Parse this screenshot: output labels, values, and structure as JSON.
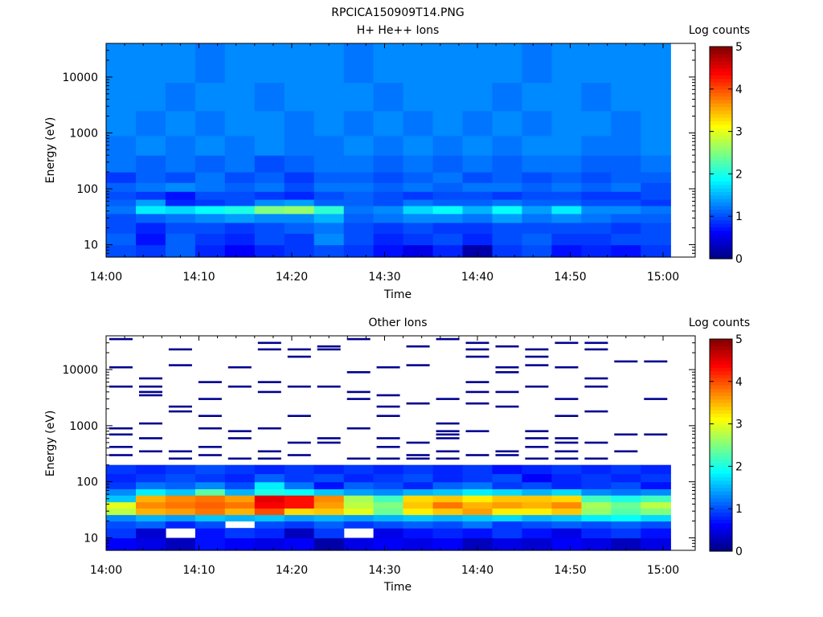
{
  "figure_title": "RPCICA150909T14.PNG",
  "colors": {
    "background": "#ffffff",
    "axis": "#000000",
    "colormap": "jet"
  },
  "chart_data": [
    {
      "type": "heatmap",
      "title": "H+ He++ Ions",
      "xlabel": "Time",
      "ylabel": "Energy (eV)",
      "x_tick_labels": [
        "14:00",
        "14:10",
        "14:20",
        "14:30",
        "14:40",
        "14:50",
        "15:00"
      ],
      "y_tick_labels": [
        "10",
        "100",
        "1000",
        "10000"
      ],
      "y_scale": "log",
      "ylim": [
        6,
        40000
      ],
      "time_bins_start": "14:00",
      "time_bin_minutes": 3.2,
      "colorbar": {
        "label": "Log counts",
        "ticks": [
          "0",
          "1",
          "2",
          "3",
          "4",
          "5"
        ],
        "range": [
          0,
          5
        ]
      },
      "energy_bands_eV": [
        {
          "lo": 6,
          "hi": 10,
          "values": [
            1.0,
            0.9,
            1.1,
            0.8,
            0.6,
            0.8,
            0.9,
            1.0,
            0.9,
            0.7,
            0.5,
            0.8,
            0.2,
            0.9,
            1.0,
            0.7,
            0.8,
            0.7,
            0.9
          ]
        },
        {
          "lo": 10,
          "hi": 16,
          "values": [
            1.1,
            0.7,
            1.1,
            0.9,
            0.8,
            1.0,
            0.9,
            1.3,
            1.0,
            0.8,
            0.9,
            1.0,
            0.8,
            1.0,
            1.1,
            0.9,
            0.9,
            1.0,
            1.0
          ]
        },
        {
          "lo": 16,
          "hi": 25,
          "values": [
            1.0,
            0.8,
            1.0,
            1.0,
            0.9,
            1.0,
            1.1,
            1.2,
            1.0,
            0.9,
            1.0,
            0.9,
            0.9,
            1.0,
            1.0,
            1.0,
            1.0,
            0.9,
            1.0
          ]
        },
        {
          "lo": 25,
          "hi": 36,
          "values": [
            1.0,
            1.1,
            1.2,
            1.3,
            1.4,
            1.3,
            1.3,
            1.5,
            1.1,
            1.2,
            1.3,
            1.3,
            1.2,
            1.4,
            1.2,
            1.3,
            1.2,
            1.1,
            1.1
          ]
        },
        {
          "lo": 36,
          "hi": 50,
          "values": [
            1.2,
            1.8,
            1.7,
            1.9,
            2.0,
            2.5,
            2.6,
            2.1,
            1.2,
            1.3,
            1.7,
            1.9,
            1.5,
            1.9,
            1.4,
            1.8,
            1.3,
            1.3,
            1.2
          ]
        },
        {
          "lo": 50,
          "hi": 65,
          "values": [
            1.1,
            1.4,
            0.8,
            0.9,
            1.0,
            1.3,
            1.4,
            1.1,
            1.1,
            1.0,
            1.2,
            1.1,
            1.1,
            1.2,
            1.1,
            1.1,
            1.0,
            1.0,
            0.9
          ]
        },
        {
          "lo": 65,
          "hi": 90,
          "values": [
            1.0,
            0.9,
            0.7,
            1.0,
            1.0,
            0.9,
            0.8,
            1.0,
            1.1,
            1.0,
            0.9,
            1.0,
            1.0,
            0.9,
            1.0,
            1.0,
            0.9,
            0.9,
            1.0
          ]
        },
        {
          "lo": 90,
          "hi": 130,
          "values": [
            1.1,
            1.2,
            1.3,
            1.2,
            1.1,
            1.2,
            1.0,
            1.2,
            1.2,
            1.1,
            1.2,
            1.1,
            1.2,
            1.2,
            1.1,
            1.2,
            1.1,
            1.2,
            1.0
          ]
        },
        {
          "lo": 130,
          "hi": 200,
          "values": [
            0.9,
            1.1,
            1.0,
            1.2,
            1.0,
            1.1,
            0.9,
            1.1,
            1.1,
            1.0,
            1.1,
            1.2,
            1.0,
            1.1,
            1.0,
            1.1,
            1.0,
            1.1,
            1.1
          ]
        },
        {
          "lo": 200,
          "hi": 400,
          "values": [
            1.2,
            1.1,
            1.2,
            1.1,
            1.2,
            1.0,
            1.1,
            1.2,
            1.2,
            1.1,
            1.2,
            1.1,
            1.2,
            1.1,
            1.2,
            1.2,
            1.1,
            1.1,
            1.2
          ]
        },
        {
          "lo": 400,
          "hi": 900,
          "values": [
            1.2,
            1.3,
            1.2,
            1.3,
            1.2,
            1.3,
            1.2,
            1.2,
            1.3,
            1.2,
            1.3,
            1.2,
            1.3,
            1.2,
            1.3,
            1.3,
            1.2,
            1.2,
            1.3
          ]
        },
        {
          "lo": 900,
          "hi": 2500,
          "values": [
            1.3,
            1.2,
            1.3,
            1.2,
            1.3,
            1.3,
            1.2,
            1.3,
            1.2,
            1.3,
            1.2,
            1.3,
            1.2,
            1.3,
            1.2,
            1.3,
            1.3,
            1.2,
            1.3
          ]
        },
        {
          "lo": 2500,
          "hi": 8000,
          "values": [
            1.3,
            1.3,
            1.2,
            1.3,
            1.3,
            1.2,
            1.3,
            1.3,
            1.3,
            1.2,
            1.3,
            1.3,
            1.3,
            1.2,
            1.3,
            1.3,
            1.2,
            1.3,
            1.3
          ]
        },
        {
          "lo": 8000,
          "hi": 40000,
          "values": [
            1.3,
            1.3,
            1.3,
            1.2,
            1.3,
            1.3,
            1.3,
            1.3,
            1.2,
            1.3,
            1.3,
            1.3,
            1.3,
            1.3,
            1.2,
            1.3,
            1.3,
            1.3,
            1.3
          ]
        }
      ]
    },
    {
      "type": "heatmap",
      "title": "Other Ions",
      "xlabel": "Time",
      "ylabel": "Energy (eV)",
      "x_tick_labels": [
        "14:00",
        "14:10",
        "14:20",
        "14:30",
        "14:40",
        "14:50",
        "15:00"
      ],
      "y_tick_labels": [
        "10",
        "100",
        "1000",
        "10000"
      ],
      "y_scale": "log",
      "ylim": [
        6,
        40000
      ],
      "time_bins_start": "14:00",
      "time_bin_minutes": 3.2,
      "colorbar": {
        "label": "Log counts",
        "ticks": [
          "0",
          "1",
          "2",
          "3",
          "4",
          "5"
        ],
        "range": [
          0,
          5
        ]
      },
      "energy_bands_eV": [
        {
          "lo": 6,
          "hi": 10,
          "values": [
            0.6,
            0.5,
            0.3,
            0.7,
            0.6,
            0.5,
            0.6,
            0.2,
            0.5,
            0.6,
            0.5,
            0.6,
            0.3,
            0.5,
            0.4,
            0.6,
            0.5,
            0.3,
            0.5
          ]
        },
        {
          "lo": 10,
          "hi": 15,
          "values": [
            0.9,
            0.4,
            null,
            0.7,
            0.9,
            0.8,
            0.3,
            0.9,
            null,
            0.5,
            0.7,
            0.8,
            0.7,
            0.9,
            0.7,
            0.5,
            0.8,
            0.9,
            0.7
          ]
        },
        {
          "lo": 15,
          "hi": 20,
          "values": [
            1.0,
            1.1,
            0.8,
            1.0,
            null,
            1.0,
            0.9,
            1.1,
            0.9,
            1.0,
            1.1,
            1.0,
            1.2,
            0.9,
            1.0,
            1.1,
            1.0,
            1.1,
            1.0
          ]
        },
        {
          "lo": 20,
          "hi": 26,
          "values": [
            1.3,
            1.5,
            1.4,
            1.6,
            1.5,
            1.6,
            1.4,
            1.5,
            1.4,
            1.5,
            1.6,
            1.5,
            1.6,
            1.7,
            1.5,
            1.6,
            1.8,
            1.9,
            1.7
          ]
        },
        {
          "lo": 26,
          "hi": 34,
          "values": [
            2.8,
            3.5,
            3.6,
            3.8,
            3.5,
            4.0,
            3.3,
            3.4,
            3.0,
            2.4,
            3.2,
            3.4,
            3.6,
            3.2,
            3.2,
            3.4,
            2.6,
            2.3,
            2.5
          ]
        },
        {
          "lo": 34,
          "hi": 44,
          "values": [
            3.0,
            3.7,
            3.8,
            3.9,
            3.8,
            4.4,
            4.3,
            3.6,
            2.8,
            2.5,
            3.4,
            3.8,
            3.5,
            3.6,
            3.5,
            3.7,
            2.7,
            2.4,
            2.8
          ]
        },
        {
          "lo": 44,
          "hi": 58,
          "values": [
            1.6,
            3.5,
            3.7,
            3.8,
            3.6,
            4.5,
            4.3,
            3.7,
            2.7,
            2.2,
            3.3,
            3.4,
            3.2,
            3.4,
            3.4,
            3.3,
            2.2,
            2.0,
            2.2
          ]
        },
        {
          "lo": 58,
          "hi": 75,
          "values": [
            1.3,
            1.8,
            1.6,
            2.3,
            1.5,
            2.0,
            1.9,
            1.6,
            1.4,
            1.3,
            1.5,
            1.6,
            1.8,
            1.7,
            1.5,
            1.7,
            1.3,
            1.2,
            1.3
          ]
        },
        {
          "lo": 75,
          "hi": 100,
          "values": [
            0.9,
            1.2,
            1.1,
            1.3,
            1.0,
            1.8,
            1.2,
            0.7,
            1.1,
            1.0,
            0.8,
            1.1,
            1.2,
            0.9,
            1.0,
            0.8,
            0.9,
            1.0,
            0.7
          ]
        },
        {
          "lo": 100,
          "hi": 140,
          "values": [
            0.8,
            0.9,
            1.0,
            0.9,
            0.8,
            1.1,
            0.9,
            1.0,
            0.8,
            0.9,
            1.0,
            0.8,
            0.9,
            1.0,
            0.6,
            0.8,
            0.9,
            0.8,
            0.9
          ]
        },
        {
          "lo": 140,
          "hi": 200,
          "values": [
            0.9,
            0.8,
            0.9,
            1.0,
            0.9,
            0.8,
            0.9,
            0.8,
            0.9,
            0.8,
            0.9,
            0.8,
            0.9,
            0.7,
            0.8,
            0.9,
            0.8,
            0.9,
            0.8
          ]
        }
      ],
      "sparse_lines": [
        {
          "energy_eV": 35000,
          "cols": [
            0,
            8,
            11
          ]
        },
        {
          "energy_eV": 30000,
          "cols": [
            5,
            12,
            15,
            16
          ]
        },
        {
          "energy_eV": 26000,
          "cols": [
            7,
            10,
            13
          ]
        },
        {
          "energy_eV": 23000,
          "cols": [
            2,
            5,
            6,
            7,
            12,
            14,
            16
          ]
        },
        {
          "energy_eV": 17000,
          "cols": [
            6,
            12,
            14
          ]
        },
        {
          "energy_eV": 14000,
          "cols": [
            17,
            18
          ]
        },
        {
          "energy_eV": 12000,
          "cols": [
            2,
            10,
            14
          ]
        },
        {
          "energy_eV": 11000,
          "cols": [
            0,
            4,
            9,
            13,
            15
          ]
        },
        {
          "energy_eV": 9000,
          "cols": [
            8,
            13
          ]
        },
        {
          "energy_eV": 7000,
          "cols": [
            1,
            16
          ]
        },
        {
          "energy_eV": 6000,
          "cols": [
            3,
            5,
            12
          ]
        },
        {
          "energy_eV": 5000,
          "cols": [
            0,
            1,
            4,
            6,
            7,
            14,
            16
          ]
        },
        {
          "energy_eV": 4000,
          "cols": [
            1,
            5,
            8,
            12,
            13
          ]
        },
        {
          "energy_eV": 3500,
          "cols": [
            1,
            9
          ]
        },
        {
          "energy_eV": 3000,
          "cols": [
            3,
            8,
            11,
            15,
            18
          ]
        },
        {
          "energy_eV": 2500,
          "cols": [
            10,
            12
          ]
        },
        {
          "energy_eV": 2200,
          "cols": [
            2,
            9,
            13
          ]
        },
        {
          "energy_eV": 1800,
          "cols": [
            2,
            16
          ]
        },
        {
          "energy_eV": 1500,
          "cols": [
            3,
            6,
            9,
            15
          ]
        },
        {
          "energy_eV": 1100,
          "cols": [
            1,
            11
          ]
        },
        {
          "energy_eV": 900,
          "cols": [
            0,
            3,
            5,
            8
          ]
        },
        {
          "energy_eV": 800,
          "cols": [
            4,
            11,
            12,
            14
          ]
        },
        {
          "energy_eV": 700,
          "cols": [
            0,
            11,
            17,
            18
          ]
        },
        {
          "energy_eV": 600,
          "cols": [
            1,
            4,
            7,
            9,
            11,
            14,
            15
          ]
        },
        {
          "energy_eV": 500,
          "cols": [
            6,
            7,
            10,
            15,
            16
          ]
        },
        {
          "energy_eV": 420,
          "cols": [
            0,
            3,
            9,
            14
          ]
        },
        {
          "energy_eV": 350,
          "cols": [
            1,
            2,
            5,
            11,
            13,
            15,
            17
          ]
        },
        {
          "energy_eV": 300,
          "cols": [
            0,
            3,
            6,
            10,
            12,
            13
          ]
        },
        {
          "energy_eV": 260,
          "cols": [
            2,
            4,
            5,
            8,
            9,
            10,
            11,
            14,
            15,
            16
          ]
        }
      ]
    }
  ]
}
